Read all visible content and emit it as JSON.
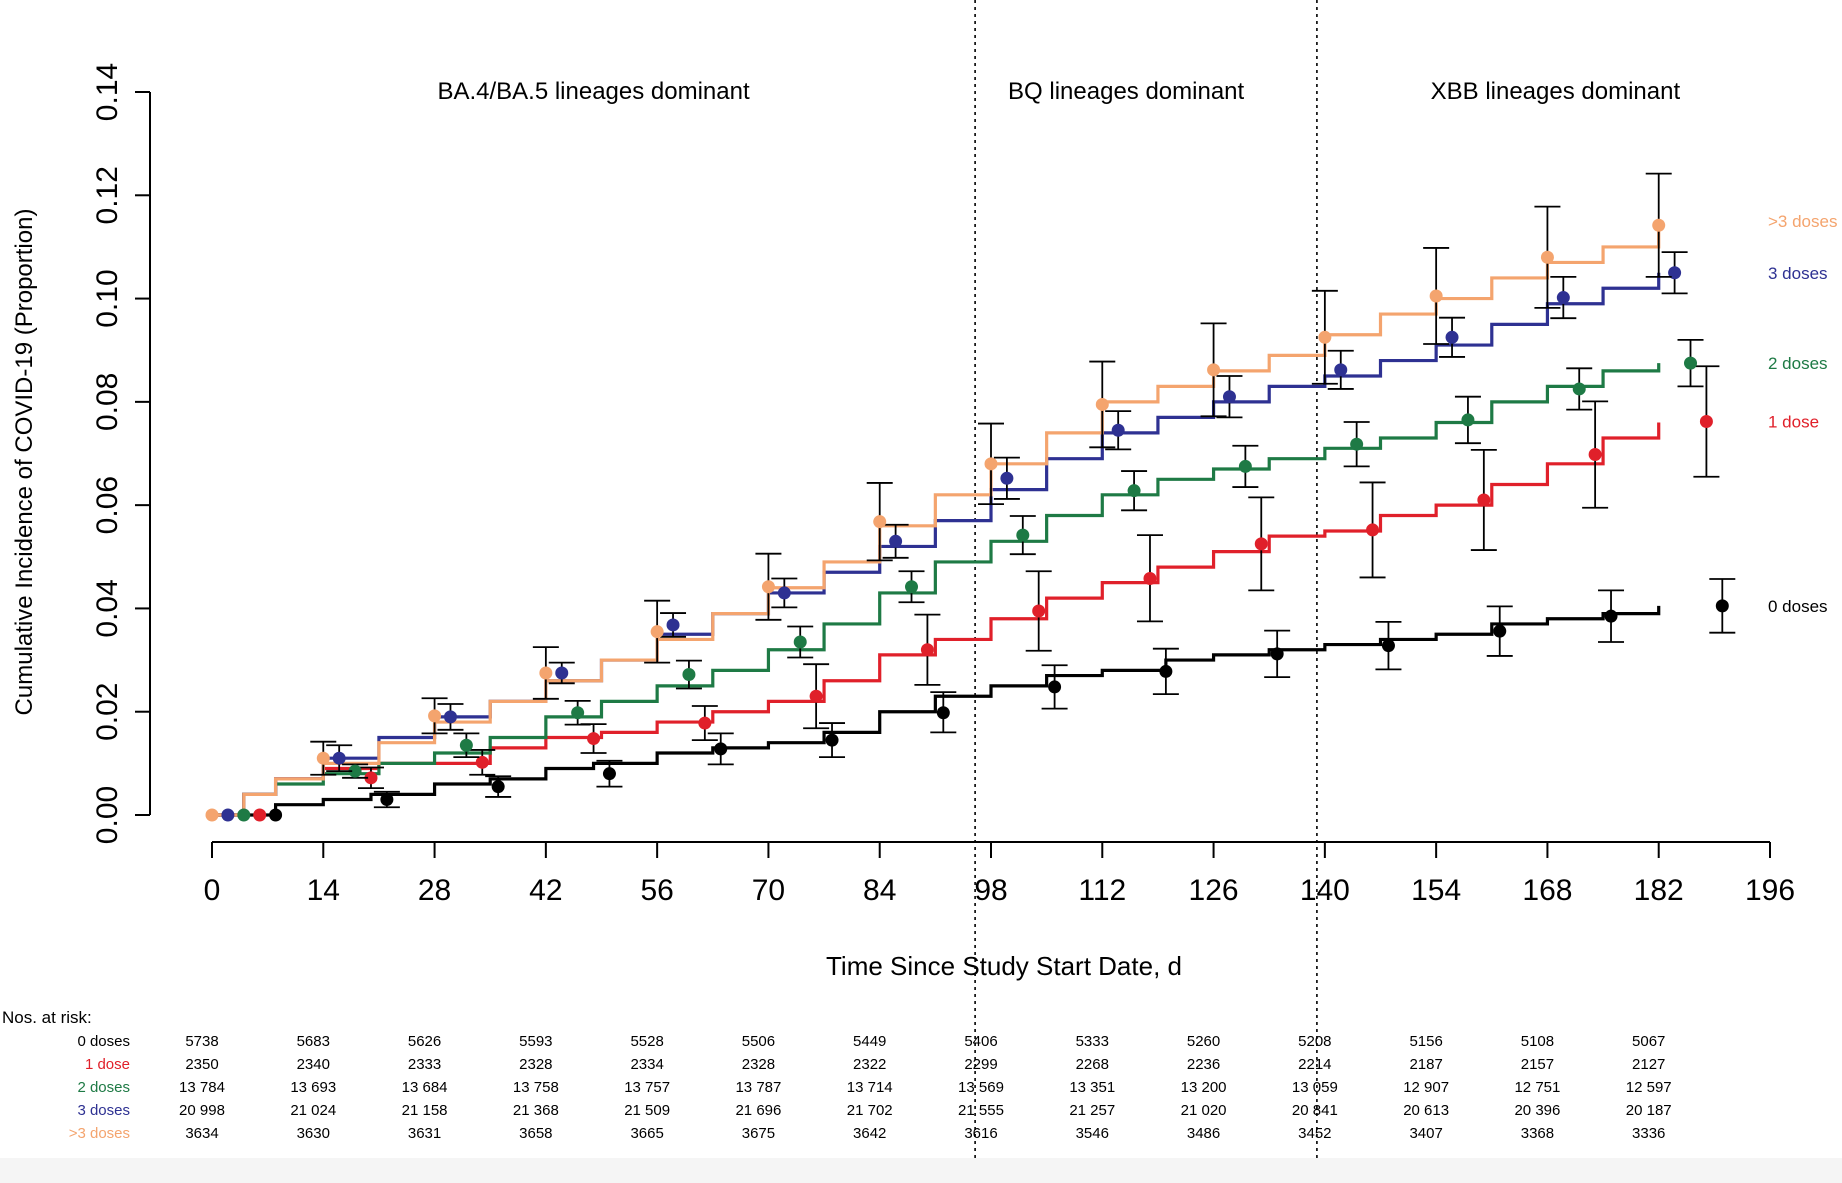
{
  "chart_data": {
    "type": "line",
    "title": "",
    "xlabel": "Time Since Study Start Date, d",
    "ylabel": "Cumulative Incidence of COVID-19 (Proportion)",
    "xlim": [
      0,
      196
    ],
    "ylim": [
      0,
      0.14
    ],
    "x_ticks": [
      0,
      14,
      28,
      42,
      56,
      70,
      84,
      98,
      112,
      126,
      140,
      154,
      168,
      182,
      196
    ],
    "x_tick_labels": [
      "0",
      "14",
      "28",
      "42",
      "56",
      "70",
      "84",
      "98",
      "112",
      "126",
      "140",
      "154",
      "168",
      "182",
      "196"
    ],
    "y_ticks": [
      0,
      0.02,
      0.04,
      0.06,
      0.08,
      0.1,
      0.12,
      0.14
    ],
    "y_tick_labels": [
      "0.00",
      "0.02",
      "0.04",
      "0.06",
      "0.08",
      "0.10",
      "0.12",
      "0.14"
    ],
    "grid": false,
    "legend": "right, labels at line ends",
    "period_dividers": [
      96,
      139
    ],
    "periods": [
      {
        "label": "BA.4/BA.5 lineages dominant",
        "x": 48
      },
      {
        "label": "BQ lineages dominant",
        "x": 115
      },
      {
        "label": "XBB lineages dominant",
        "x": 169
      }
    ],
    "series": [
      {
        "name": "0 doses",
        "color": "#000000",
        "curve": [
          [
            0,
            0
          ],
          [
            4,
            0
          ],
          [
            8,
            0.002
          ],
          [
            14,
            0.003
          ],
          [
            20,
            0.004
          ],
          [
            28,
            0.006
          ],
          [
            35,
            0.007
          ],
          [
            42,
            0.009
          ],
          [
            48,
            0.01
          ],
          [
            56,
            0.012
          ],
          [
            63,
            0.013
          ],
          [
            70,
            0.014
          ],
          [
            77,
            0.016
          ],
          [
            84,
            0.02
          ],
          [
            91,
            0.023
          ],
          [
            98,
            0.025
          ],
          [
            105,
            0.027
          ],
          [
            112,
            0.028
          ],
          [
            120,
            0.03
          ],
          [
            126,
            0.031
          ],
          [
            133,
            0.032
          ],
          [
            140,
            0.033
          ],
          [
            147,
            0.034
          ],
          [
            154,
            0.035
          ],
          [
            161,
            0.037
          ],
          [
            168,
            0.038
          ],
          [
            175,
            0.039
          ],
          [
            182,
            0.0405
          ]
        ],
        "points": [
          [
            8,
            0,
            0,
            0
          ],
          [
            22,
            0.003,
            0.0015,
            0.0045
          ],
          [
            36,
            0.0055,
            0.0035,
            0.0075
          ],
          [
            50,
            0.008,
            0.0055,
            0.0105
          ],
          [
            64,
            0.0128,
            0.0098,
            0.0158
          ],
          [
            78,
            0.0145,
            0.0112,
            0.0178
          ],
          [
            92,
            0.0198,
            0.016,
            0.0238
          ],
          [
            106,
            0.0248,
            0.0206,
            0.029
          ],
          [
            120,
            0.0278,
            0.0234,
            0.0322
          ],
          [
            134,
            0.0312,
            0.0267,
            0.0357
          ],
          [
            148,
            0.0328,
            0.0282,
            0.0374
          ],
          [
            162,
            0.0356,
            0.0308,
            0.0404
          ],
          [
            176,
            0.0385,
            0.0335,
            0.0435
          ],
          [
            190,
            0.0405,
            0.0353,
            0.0457
          ]
        ]
      },
      {
        "name": "1 dose",
        "color": "#e0202a",
        "curve": [
          [
            0,
            0
          ],
          [
            4,
            0.004
          ],
          [
            8,
            0.007
          ],
          [
            14,
            0.009
          ],
          [
            21,
            0.01
          ],
          [
            28,
            0.01
          ],
          [
            35,
            0.013
          ],
          [
            42,
            0.015
          ],
          [
            49,
            0.016
          ],
          [
            56,
            0.018
          ],
          [
            63,
            0.02
          ],
          [
            70,
            0.022
          ],
          [
            77,
            0.026
          ],
          [
            84,
            0.031
          ],
          [
            91,
            0.034
          ],
          [
            98,
            0.038
          ],
          [
            105,
            0.042
          ],
          [
            112,
            0.045
          ],
          [
            119,
            0.048
          ],
          [
            126,
            0.051
          ],
          [
            133,
            0.054
          ],
          [
            140,
            0.055
          ],
          [
            147,
            0.058
          ],
          [
            154,
            0.06
          ],
          [
            161,
            0.064
          ],
          [
            168,
            0.068
          ],
          [
            175,
            0.073
          ],
          [
            182,
            0.076
          ]
        ],
        "points": [
          [
            6,
            0,
            0,
            0
          ],
          [
            20,
            0.0072,
            0.0052,
            0.0092
          ],
          [
            34,
            0.0102,
            0.0078,
            0.0126
          ],
          [
            48,
            0.0148,
            0.012,
            0.0176
          ],
          [
            62,
            0.0178,
            0.0145,
            0.0211
          ],
          [
            76,
            0.023,
            0.0168,
            0.0292
          ],
          [
            90,
            0.032,
            0.0252,
            0.0388
          ],
          [
            104,
            0.0395,
            0.0318,
            0.0472
          ],
          [
            118,
            0.0458,
            0.0375,
            0.0542
          ],
          [
            132,
            0.0525,
            0.0435,
            0.0615
          ],
          [
            146,
            0.0552,
            0.046,
            0.0644
          ],
          [
            160,
            0.061,
            0.0513,
            0.0707
          ],
          [
            174,
            0.0698,
            0.0595,
            0.0801
          ],
          [
            188,
            0.0762,
            0.0655,
            0.0869
          ]
        ]
      },
      {
        "name": "2 doses",
        "color": "#1e7a45",
        "curve": [
          [
            0,
            0
          ],
          [
            4,
            0.004
          ],
          [
            8,
            0.006
          ],
          [
            14,
            0.008
          ],
          [
            21,
            0.01
          ],
          [
            28,
            0.012
          ],
          [
            35,
            0.015
          ],
          [
            42,
            0.019
          ],
          [
            49,
            0.022
          ],
          [
            56,
            0.025
          ],
          [
            63,
            0.028
          ],
          [
            70,
            0.032
          ],
          [
            77,
            0.037
          ],
          [
            84,
            0.043
          ],
          [
            91,
            0.049
          ],
          [
            98,
            0.053
          ],
          [
            105,
            0.058
          ],
          [
            112,
            0.062
          ],
          [
            119,
            0.065
          ],
          [
            126,
            0.067
          ],
          [
            133,
            0.069
          ],
          [
            140,
            0.071
          ],
          [
            147,
            0.073
          ],
          [
            154,
            0.076
          ],
          [
            161,
            0.08
          ],
          [
            168,
            0.083
          ],
          [
            175,
            0.086
          ],
          [
            182,
            0.0875
          ]
        ],
        "points": [
          [
            4,
            0,
            0,
            0
          ],
          [
            18,
            0.0085,
            0.0072,
            0.0098
          ],
          [
            32,
            0.0135,
            0.0112,
            0.0158
          ],
          [
            46,
            0.0198,
            0.0175,
            0.0221
          ],
          [
            60,
            0.0272,
            0.0245,
            0.0299
          ],
          [
            74,
            0.0335,
            0.0305,
            0.0365
          ],
          [
            88,
            0.0442,
            0.0412,
            0.0472
          ],
          [
            102,
            0.0542,
            0.0505,
            0.0579
          ],
          [
            116,
            0.0628,
            0.059,
            0.0666
          ],
          [
            130,
            0.0675,
            0.0635,
            0.0715
          ],
          [
            144,
            0.0718,
            0.0675,
            0.0761
          ],
          [
            158,
            0.0765,
            0.072,
            0.081
          ],
          [
            172,
            0.0825,
            0.0785,
            0.0865
          ],
          [
            186,
            0.0875,
            0.083,
            0.092
          ]
        ]
      },
      {
        "name": "3 doses",
        "color": "#2e3192",
        "curve": [
          [
            0,
            0
          ],
          [
            4,
            0.004
          ],
          [
            8,
            0.007
          ],
          [
            14,
            0.011
          ],
          [
            21,
            0.015
          ],
          [
            28,
            0.019
          ],
          [
            35,
            0.022
          ],
          [
            42,
            0.026
          ],
          [
            49,
            0.03
          ],
          [
            56,
            0.035
          ],
          [
            63,
            0.039
          ],
          [
            70,
            0.043
          ],
          [
            77,
            0.047
          ],
          [
            84,
            0.052
          ],
          [
            91,
            0.057
          ],
          [
            98,
            0.063
          ],
          [
            105,
            0.069
          ],
          [
            112,
            0.074
          ],
          [
            119,
            0.077
          ],
          [
            126,
            0.08
          ],
          [
            133,
            0.083
          ],
          [
            140,
            0.085
          ],
          [
            147,
            0.088
          ],
          [
            154,
            0.091
          ],
          [
            161,
            0.095
          ],
          [
            168,
            0.099
          ],
          [
            175,
            0.102
          ],
          [
            182,
            0.105
          ]
        ],
        "points": [
          [
            2,
            0,
            0,
            0
          ],
          [
            16,
            0.011,
            0.0085,
            0.0135
          ],
          [
            30,
            0.019,
            0.0165,
            0.0215
          ],
          [
            44,
            0.0275,
            0.0255,
            0.0295
          ],
          [
            58,
            0.0368,
            0.0345,
            0.0391
          ],
          [
            72,
            0.043,
            0.0402,
            0.0458
          ],
          [
            86,
            0.053,
            0.0498,
            0.0562
          ],
          [
            100,
            0.0652,
            0.0612,
            0.0692
          ],
          [
            114,
            0.0745,
            0.0708,
            0.0782
          ],
          [
            128,
            0.081,
            0.077,
            0.085
          ],
          [
            142,
            0.0862,
            0.0825,
            0.0899
          ],
          [
            156,
            0.0925,
            0.0887,
            0.0963
          ],
          [
            170,
            0.1002,
            0.0962,
            0.1042
          ],
          [
            184,
            0.105,
            0.101,
            0.109
          ]
        ]
      },
      {
        "name": ">3 doses",
        "color": "#f4a46e",
        "curve": [
          [
            0,
            0
          ],
          [
            4,
            0.004
          ],
          [
            8,
            0.007
          ],
          [
            14,
            0.01
          ],
          [
            21,
            0.014
          ],
          [
            28,
            0.018
          ],
          [
            35,
            0.022
          ],
          [
            42,
            0.026
          ],
          [
            49,
            0.03
          ],
          [
            56,
            0.034
          ],
          [
            63,
            0.039
          ],
          [
            70,
            0.044
          ],
          [
            77,
            0.049
          ],
          [
            84,
            0.056
          ],
          [
            91,
            0.062
          ],
          [
            98,
            0.068
          ],
          [
            105,
            0.074
          ],
          [
            112,
            0.08
          ],
          [
            119,
            0.083
          ],
          [
            126,
            0.086
          ],
          [
            133,
            0.089
          ],
          [
            140,
            0.093
          ],
          [
            147,
            0.097
          ],
          [
            154,
            0.1
          ],
          [
            161,
            0.104
          ],
          [
            168,
            0.107
          ],
          [
            175,
            0.11
          ],
          [
            182,
            0.114
          ]
        ],
        "points": [
          [
            0,
            0,
            0,
            0
          ],
          [
            14,
            0.011,
            0.0078,
            0.0142
          ],
          [
            28,
            0.0192,
            0.0158,
            0.0226
          ],
          [
            42,
            0.0275,
            0.0225,
            0.0325
          ],
          [
            56,
            0.0355,
            0.0295,
            0.0415
          ],
          [
            70,
            0.0442,
            0.0378,
            0.0506
          ],
          [
            84,
            0.0568,
            0.0493,
            0.0643
          ],
          [
            98,
            0.068,
            0.0602,
            0.0758
          ],
          [
            112,
            0.0795,
            0.0712,
            0.0878
          ],
          [
            126,
            0.0862,
            0.0772,
            0.0952
          ],
          [
            140,
            0.0925,
            0.0835,
            0.1015
          ],
          [
            154,
            0.1005,
            0.0912,
            0.1098
          ],
          [
            168,
            0.108,
            0.0982,
            0.1178
          ],
          [
            182,
            0.1142,
            0.1042,
            0.1242
          ]
        ]
      }
    ],
    "risk_table": {
      "header": "Nos. at risk:",
      "rows": [
        {
          "label": "0 doses",
          "color": "#000000",
          "values": [
            "5738",
            "5683",
            "5626",
            "5593",
            "5528",
            "5506",
            "5449",
            "5406",
            "5333",
            "5260",
            "5208",
            "5156",
            "5108",
            "5067"
          ]
        },
        {
          "label": "1 dose",
          "color": "#e0202a",
          "values": [
            "2350",
            "2340",
            "2333",
            "2328",
            "2334",
            "2328",
            "2322",
            "2299",
            "2268",
            "2236",
            "2214",
            "2187",
            "2157",
            "2127"
          ]
        },
        {
          "label": "2 doses",
          "color": "#1e7a45",
          "values": [
            "13 784",
            "13 693",
            "13 684",
            "13 758",
            "13 757",
            "13 787",
            "13 714",
            "13 569",
            "13 351",
            "13 200",
            "13 059",
            "12 907",
            "12 751",
            "12 597"
          ]
        },
        {
          "label": "3 doses",
          "color": "#2e3192",
          "values": [
            "20 998",
            "21 024",
            "21 158",
            "21 368",
            "21 509",
            "21 696",
            "21 702",
            "21 555",
            "21 257",
            "21 020",
            "20 841",
            "20 613",
            "20 396",
            "20 187"
          ]
        },
        {
          "label": ">3 doses",
          "color": "#f4a46e",
          "values": [
            "3634",
            "3630",
            "3631",
            "3658",
            "3665",
            "3675",
            "3642",
            "3616",
            "3546",
            "3486",
            "3452",
            "3407",
            "3368",
            "3336"
          ]
        }
      ]
    }
  }
}
